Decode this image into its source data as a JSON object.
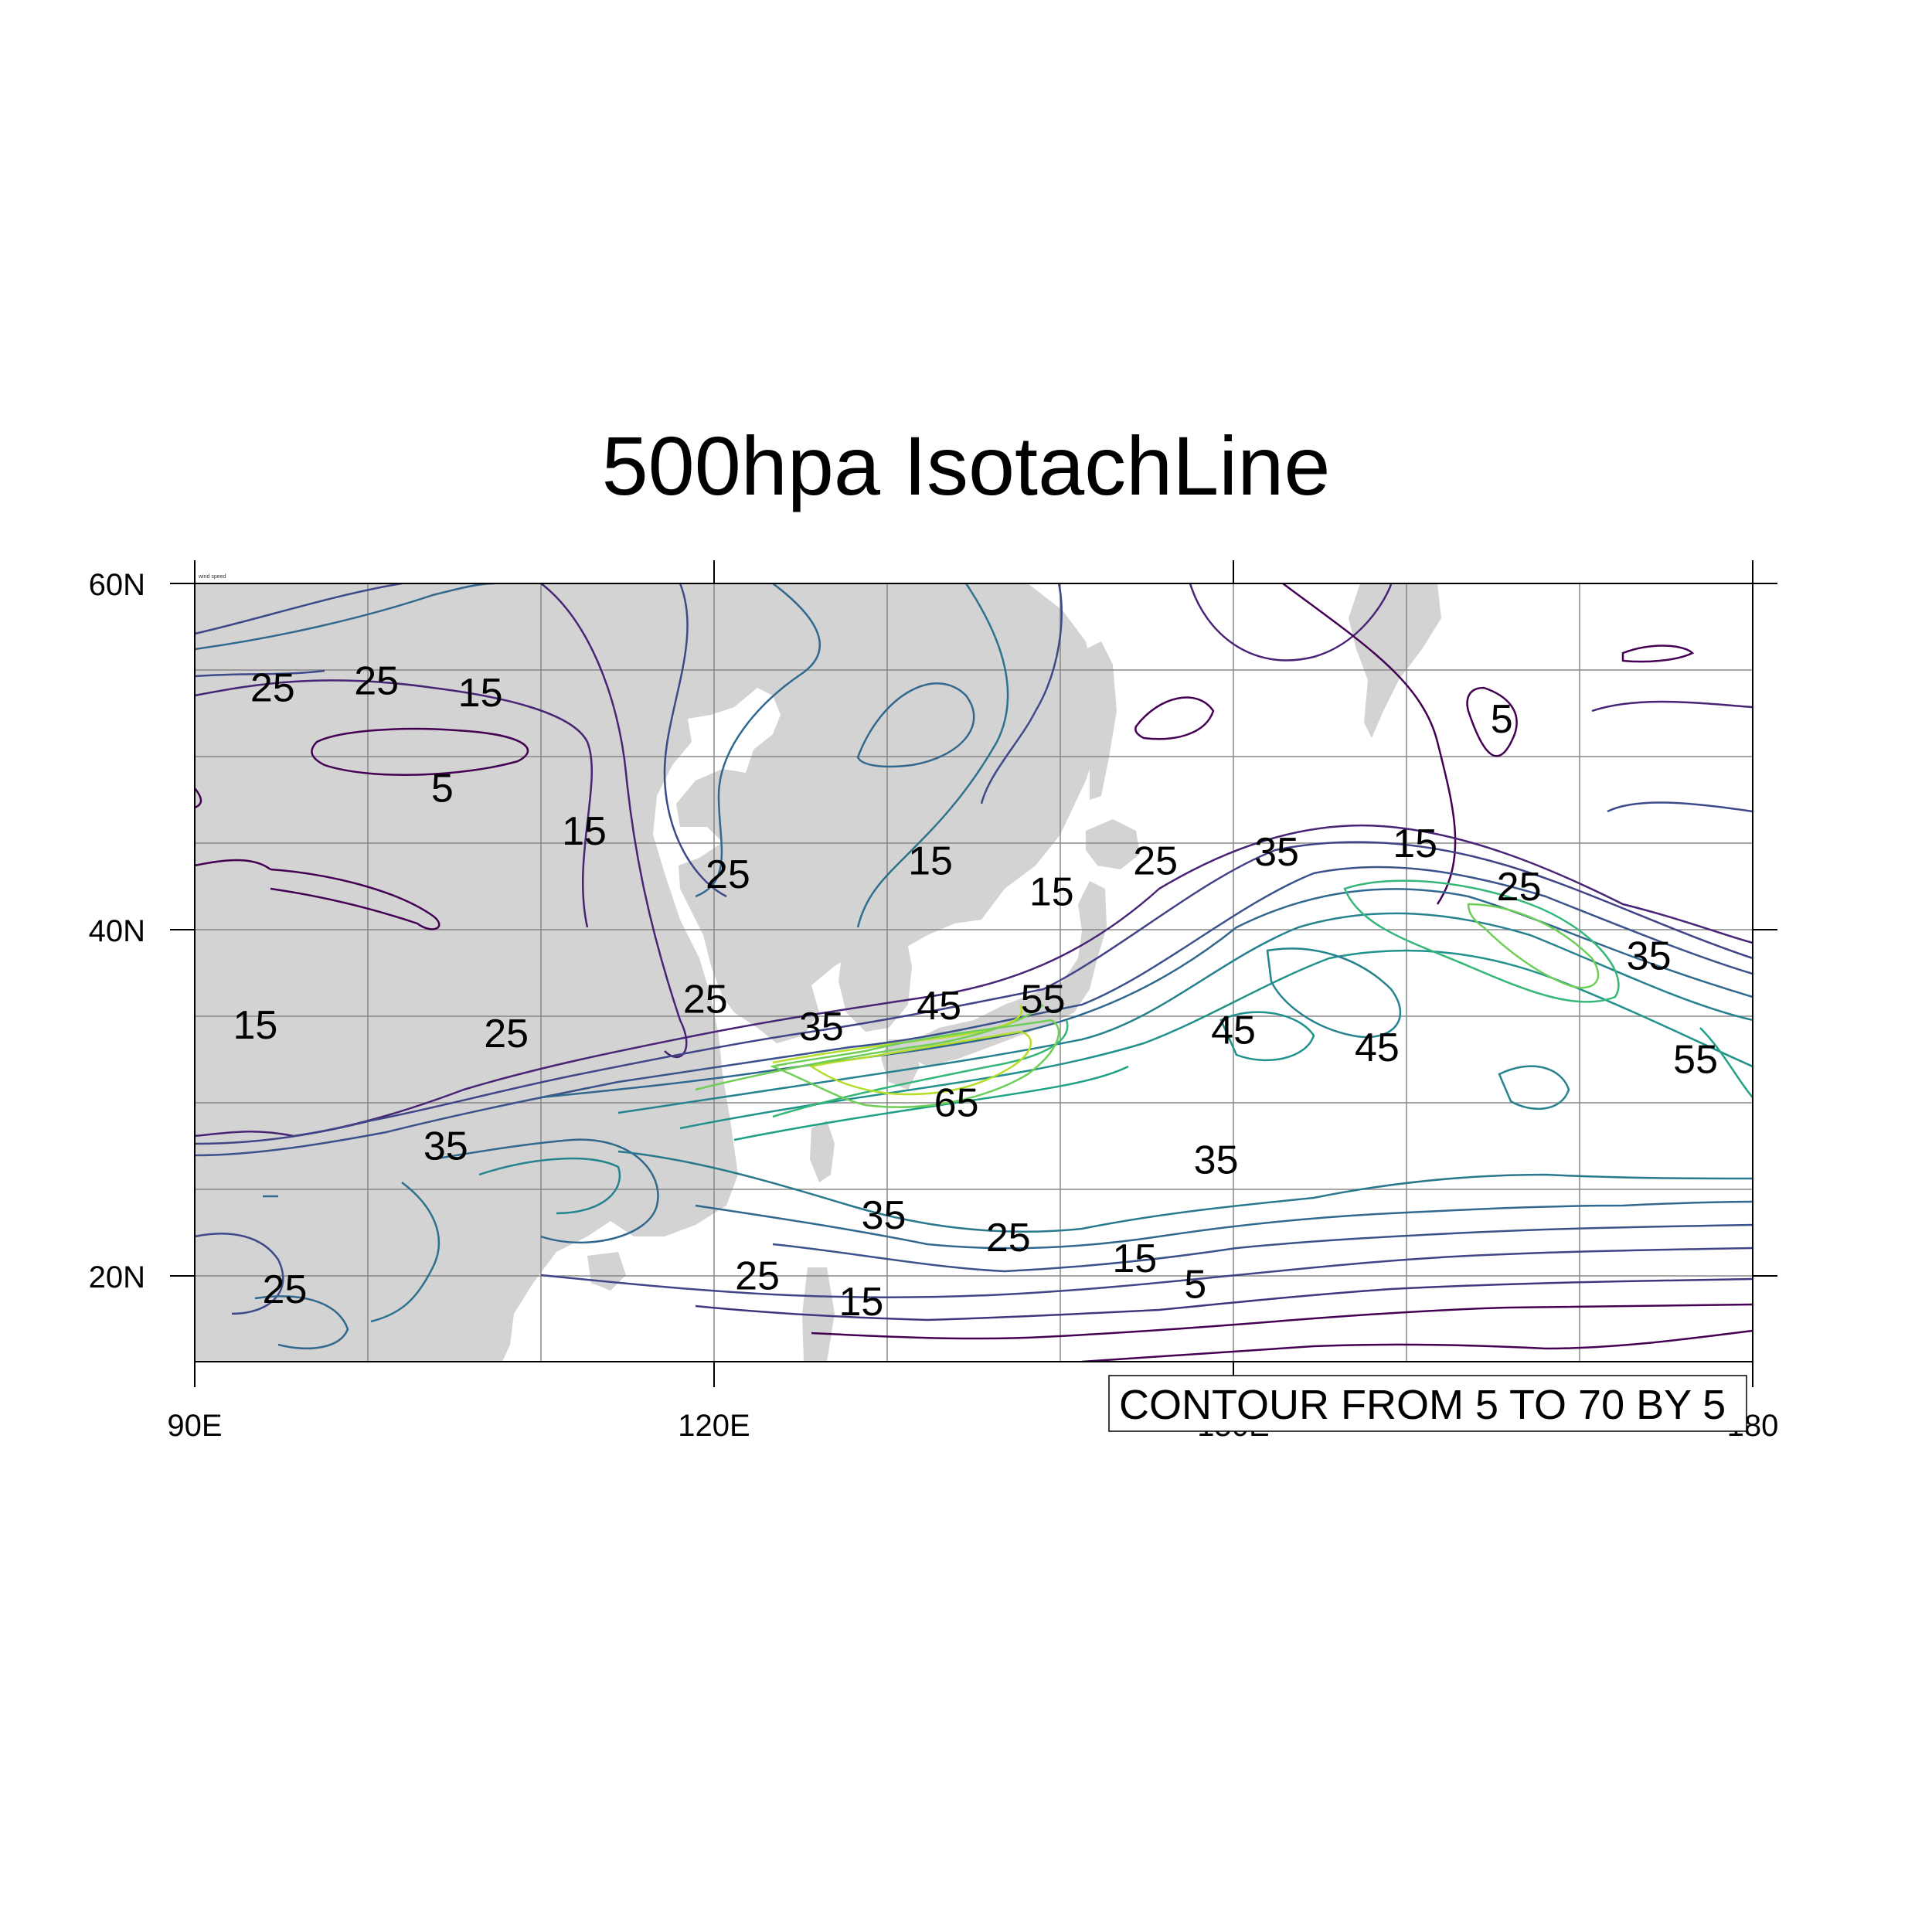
{
  "title": "500hpa IsotachLine",
  "corner_label": "wind speed",
  "info_label": "CONTOUR FROM 5 TO 70 BY 5",
  "axes": {
    "x_ticks": [
      "90E",
      "120E",
      "150E",
      "180"
    ],
    "y_ticks": [
      "60N",
      "40N",
      "20N"
    ]
  },
  "chart_data": {
    "type": "contour",
    "title": "500hpa IsotachLine",
    "lon_range": [
      90,
      180
    ],
    "lat_range": [
      15,
      60
    ],
    "contour_min": 5,
    "contour_max": 70,
    "contour_interval": 5,
    "contour_labels": [
      {
        "text": "25",
        "lon": 94.5,
        "lat": 53.8
      },
      {
        "text": "25",
        "lon": 100.5,
        "lat": 54.2
      },
      {
        "text": "15",
        "lon": 106.5,
        "lat": 53.5
      },
      {
        "text": "5",
        "lon": 104.3,
        "lat": 48.0
      },
      {
        "text": "15",
        "lon": 112.5,
        "lat": 45.5
      },
      {
        "text": "25",
        "lon": 120.8,
        "lat": 43.0
      },
      {
        "text": "15",
        "lon": 132.5,
        "lat": 43.8
      },
      {
        "text": "15",
        "lon": 139.5,
        "lat": 42.0
      },
      {
        "text": "25",
        "lon": 145.5,
        "lat": 43.8
      },
      {
        "text": "35",
        "lon": 152.5,
        "lat": 44.3
      },
      {
        "text": "15",
        "lon": 160.5,
        "lat": 44.8
      },
      {
        "text": "5",
        "lon": 165.5,
        "lat": 52.0
      },
      {
        "text": "25",
        "lon": 166.5,
        "lat": 42.3
      },
      {
        "text": "35",
        "lon": 174.0,
        "lat": 38.3
      },
      {
        "text": "55",
        "lon": 176.7,
        "lat": 32.3
      },
      {
        "text": "15",
        "lon": 93.5,
        "lat": 34.3
      },
      {
        "text": "25",
        "lon": 108.0,
        "lat": 33.8
      },
      {
        "text": "25",
        "lon": 119.5,
        "lat": 35.8
      },
      {
        "text": "35",
        "lon": 126.2,
        "lat": 34.2
      },
      {
        "text": "45",
        "lon": 133.0,
        "lat": 35.4
      },
      {
        "text": "55",
        "lon": 139.0,
        "lat": 35.8
      },
      {
        "text": "45",
        "lon": 150.0,
        "lat": 34.0
      },
      {
        "text": "45",
        "lon": 158.3,
        "lat": 33.0
      },
      {
        "text": "65",
        "lon": 134.0,
        "lat": 29.8
      },
      {
        "text": "35",
        "lon": 104.5,
        "lat": 27.3
      },
      {
        "text": "35",
        "lon": 149.0,
        "lat": 26.5
      },
      {
        "text": "35",
        "lon": 129.8,
        "lat": 23.3
      },
      {
        "text": "25",
        "lon": 137.0,
        "lat": 22.0
      },
      {
        "text": "25",
        "lon": 122.5,
        "lat": 19.8
      },
      {
        "text": "15",
        "lon": 144.3,
        "lat": 20.8
      },
      {
        "text": "15",
        "lon": 128.5,
        "lat": 18.3
      },
      {
        "text": "5",
        "lon": 147.8,
        "lat": 19.3
      },
      {
        "text": "25",
        "lon": 95.2,
        "lat": 19.0
      }
    ],
    "colors": {
      "low": "#440154",
      "mid_low": "#3b528b",
      "mid": "#21918c",
      "mid_high": "#5ec962",
      "high": "#fde725",
      "land": "#d3d3d3",
      "grid": "#888888"
    }
  }
}
